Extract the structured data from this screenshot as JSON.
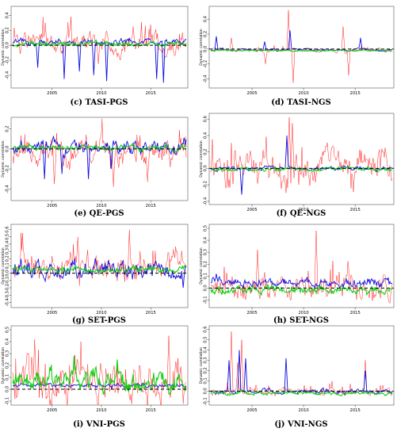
{
  "colors": {
    "red": "#ff1f1f",
    "blue": "#1010e0",
    "green": "#10d010",
    "frame": "#555555",
    "zero_line": "#000000"
  },
  "chart_data": [
    {
      "type": "line",
      "caption": "(c) TASI-PGS",
      "ylabel": "Dynamic correlation",
      "x_range": [
        2001,
        2018.6
      ],
      "xticks": [
        "2005",
        "2010",
        "2015"
      ],
      "ylim": [
        -0.55,
        0.5
      ],
      "yticks": [
        "0.4",
        "0.2",
        "0.0",
        "-0.2",
        "-0.4"
      ],
      "series": [
        {
          "color": "red",
          "base": 0.03,
          "spread": 0.16,
          "spikes": [
            [
              2009.7,
              -0.25
            ],
            [
              2004.3,
              0.3
            ],
            [
              2013.2,
              0.25
            ]
          ]
        },
        {
          "color": "blue",
          "base": 0.04,
          "spread": 0.05,
          "spikes": [
            [
              2003.5,
              -0.3
            ],
            [
              2006.2,
              -0.45
            ],
            [
              2007.8,
              -0.35
            ],
            [
              2009.2,
              -0.4
            ],
            [
              2010.5,
              -0.48
            ],
            [
              2015.6,
              -0.45
            ],
            [
              2016.3,
              -0.5
            ]
          ]
        },
        {
          "color": "green",
          "base": 0.02,
          "spread": 0.04,
          "spikes": []
        }
      ]
    },
    {
      "type": "line",
      "caption": "(d) TASI-NGS",
      "ylabel": "Dynamic correlation",
      "x_range": [
        2001,
        2018.6
      ],
      "xticks": [
        "2005",
        "2010",
        "2015"
      ],
      "ylim": [
        -0.5,
        0.55
      ],
      "yticks": [
        "0.4",
        "0.2",
        "0.0",
        "-0.2",
        "-0.4"
      ],
      "series": [
        {
          "color": "red",
          "base": -0.02,
          "spread": 0.03,
          "spikes": [
            [
              2003.0,
              0.15
            ],
            [
              2006.3,
              -0.2
            ],
            [
              2008.5,
              0.52
            ],
            [
              2009.0,
              -0.45
            ],
            [
              2013.8,
              0.3
            ],
            [
              2014.4,
              -0.35
            ]
          ]
        },
        {
          "color": "blue",
          "base": -0.01,
          "spread": 0.02,
          "spikes": [
            [
              2001.5,
              0.17
            ],
            [
              2006.2,
              0.1
            ],
            [
              2008.7,
              0.25
            ],
            [
              2015.5,
              0.15
            ]
          ]
        },
        {
          "color": "green",
          "base": -0.02,
          "spread": 0.01,
          "spikes": []
        }
      ]
    },
    {
      "type": "line",
      "caption": "(e) QE-PGS",
      "ylabel": "Dynamic correlation",
      "x_range": [
        2001,
        2018.6
      ],
      "xticks": [
        "2005",
        "2010",
        "2015"
      ],
      "ylim": [
        -0.5,
        0.3
      ],
      "yticks": [
        "0.2",
        "0.0",
        "-0.2",
        "-0.4"
      ],
      "series": [
        {
          "color": "red",
          "base": -0.05,
          "spread": 0.15,
          "spikes": [
            [
              2005.2,
              -0.35
            ],
            [
              2011.2,
              -0.38
            ],
            [
              2014.7,
              -0.33
            ]
          ]
        },
        {
          "color": "blue",
          "base": 0.02,
          "spread": 0.08,
          "spikes": [
            [
              2004.2,
              -0.3
            ],
            [
              2006.0,
              -0.25
            ],
            [
              2008.7,
              -0.3
            ],
            [
              2011.0,
              -0.2
            ]
          ]
        },
        {
          "color": "green",
          "base": 0.01,
          "spread": 0.03,
          "spikes": []
        }
      ]
    },
    {
      "type": "line",
      "caption": "(f) QE-NGS",
      "ylabel": "Dynamic correlation",
      "x_range": [
        2001,
        2018.6
      ],
      "xticks": [
        "2005",
        "2010",
        "2015"
      ],
      "ylim": [
        -0.42,
        0.65
      ],
      "yticks": [
        "0.6",
        "0.4",
        "0.2",
        "0.0",
        "-0.2",
        "-0.4"
      ],
      "series": [
        {
          "color": "red",
          "base": 0.02,
          "spread": 0.25,
          "spikes": [
            [
              2008.6,
              0.62
            ],
            [
              2008.9,
              0.55
            ]
          ]
        },
        {
          "color": "blue",
          "base": 0.0,
          "spread": 0.03,
          "spikes": [
            [
              2004.0,
              -0.32
            ],
            [
              2008.4,
              0.4
            ]
          ]
        },
        {
          "color": "green",
          "base": -0.01,
          "spread": 0.03,
          "spikes": []
        }
      ]
    },
    {
      "type": "line",
      "caption": "(g) SET-PGS",
      "ylabel": "Dynamic correlation",
      "x_range": [
        2001,
        2018.6
      ],
      "xticks": [
        "2005",
        "2010",
        "2015"
      ],
      "ylim": [
        -0.45,
        0.65
      ],
      "yticks": [
        "0.6",
        "0.5",
        "0.4",
        "0.3",
        "0.2",
        "0.1",
        "0.0",
        "-0.1",
        "-0.2",
        "-0.3",
        "-0.4"
      ],
      "series": [
        {
          "color": "red",
          "base": 0.08,
          "spread": 0.22,
          "spikes": [
            [
              2002.0,
              0.55
            ],
            [
              2012.8,
              0.6
            ],
            [
              2007.6,
              0.5
            ]
          ]
        },
        {
          "color": "blue",
          "base": 0.05,
          "spread": 0.14,
          "spikes": [
            [
              2018.3,
              -0.2
            ]
          ]
        },
        {
          "color": "green",
          "base": 0.05,
          "spread": 0.05,
          "spikes": []
        }
      ]
    },
    {
      "type": "line",
      "caption": "(h) SET-NGS",
      "ylabel": "Dynamic correlation",
      "x_range": [
        2001,
        2018.6
      ],
      "xticks": [
        "2005",
        "2010",
        "2015"
      ],
      "ylim": [
        -0.15,
        0.52
      ],
      "yticks": [
        "0.5",
        "0.4",
        "0.3",
        "0.2",
        "0.1",
        "0.0",
        "-0.1"
      ],
      "series": [
        {
          "color": "red",
          "base": 0.0,
          "spread": 0.13,
          "spikes": [
            [
              2011.2,
              0.48
            ],
            [
              2005.5,
              0.32
            ]
          ]
        },
        {
          "color": "blue",
          "base": 0.04,
          "spread": 0.05,
          "spikes": [
            [
              2001.5,
              0.12
            ]
          ]
        },
        {
          "color": "green",
          "base": -0.01,
          "spread": 0.04,
          "spikes": []
        }
      ]
    },
    {
      "type": "line",
      "caption": "(i) VNI-PGS",
      "ylabel": "Dynamic correlation",
      "x_range": [
        2001,
        2018.6
      ],
      "xticks": [
        "2005",
        "2010",
        "2015"
      ],
      "ylim": [
        -0.12,
        0.52
      ],
      "yticks": [
        "0.5",
        "0.4",
        "0.3",
        "0.2",
        "0.1",
        "0.0",
        "-0.1"
      ],
      "series": [
        {
          "color": "red",
          "base": 0.05,
          "spread": 0.2,
          "spikes": [
            [
              2003.2,
              0.42
            ],
            [
              2016.8,
              0.45
            ]
          ]
        },
        {
          "color": "blue",
          "base": 0.03,
          "spread": 0.02,
          "spikes": []
        },
        {
          "color": "green",
          "base": 0.06,
          "spread": 0.1,
          "spikes": [
            [
              2007.2,
              0.28
            ],
            [
              2011.6,
              0.25
            ]
          ]
        }
      ]
    },
    {
      "type": "line",
      "caption": "(j) VNI-NGS",
      "ylabel": "Dynamic correlation",
      "x_range": [
        2001,
        2018.6
      ],
      "xticks": [
        "2005",
        "2010",
        "2015"
      ],
      "ylim": [
        -0.12,
        0.62
      ],
      "yticks": [
        "0.6",
        "0.5",
        "0.4",
        "0.3",
        "0.2",
        "0.1",
        "0.0",
        "-0.1"
      ],
      "series": [
        {
          "color": "red",
          "base": 0.0,
          "spread": 0.04,
          "spikes": [
            [
              2003.0,
              0.58
            ],
            [
              2004.0,
              0.5
            ],
            [
              2003.6,
              0.28
            ],
            [
              2016.0,
              0.3
            ]
          ]
        },
        {
          "color": "blue",
          "base": 0.0,
          "spread": 0.03,
          "spikes": [
            [
              2002.8,
              0.3
            ],
            [
              2003.8,
              0.4
            ],
            [
              2004.4,
              0.32
            ],
            [
              2008.3,
              0.32
            ],
            [
              2016.0,
              0.2
            ]
          ]
        },
        {
          "color": "green",
          "base": -0.02,
          "spread": 0.02,
          "spikes": []
        }
      ]
    }
  ]
}
